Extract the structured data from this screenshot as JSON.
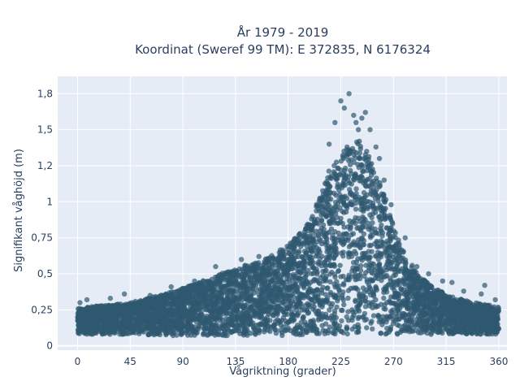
{
  "chart_data": {
    "type": "scatter",
    "title": [
      "År 1979 - 2019",
      "Koordinat (Sweref 99 TM): E 372835, N 6176324"
    ],
    "xlabel": "Vågriktning (grader)",
    "ylabel": "Signifikant våghöjd (m)",
    "xlim": [
      -17,
      367
    ],
    "ylim": [
      -0.03,
      1.87
    ],
    "x_ticks": [
      0,
      45,
      90,
      135,
      180,
      225,
      270,
      315,
      360
    ],
    "x_tick_labels": [
      "0",
      "45",
      "90",
      "135",
      "180",
      "225",
      "270",
      "315",
      "360"
    ],
    "y_ticks": [
      0,
      0.25,
      0.5,
      0.75,
      1,
      1.25,
      1.5,
      1.75
    ],
    "y_tick_labels": [
      "0",
      "0,25",
      "0,5",
      "0,75",
      "1",
      "1,2",
      "1,5",
      "1,8"
    ],
    "grid": true,
    "background_color": "#e5ecf6",
    "marker_color": "#2f5870",
    "marker_opacity": 0.7,
    "envelope": {
      "description": "upper edge of dense point cloud (direction in degrees, height in m)",
      "x": [
        0,
        20,
        45,
        70,
        90,
        110,
        135,
        160,
        180,
        195,
        205,
        215,
        225,
        235,
        245,
        255,
        265,
        275,
        290,
        305,
        320,
        340,
        360
      ],
      "y_upper": [
        0.26,
        0.28,
        0.3,
        0.35,
        0.4,
        0.46,
        0.54,
        0.6,
        0.7,
        0.82,
        1.0,
        1.22,
        1.32,
        1.45,
        1.4,
        1.22,
        0.98,
        0.72,
        0.5,
        0.4,
        0.34,
        0.3,
        0.27
      ],
      "y_lower": [
        0.08,
        0.08,
        0.08,
        0.07,
        0.07,
        0.07,
        0.07,
        0.07,
        0.07,
        0.07,
        0.07,
        0.08,
        0.08,
        0.08,
        0.08,
        0.08,
        0.08,
        0.08,
        0.08,
        0.08,
        0.08,
        0.08,
        0.08
      ]
    },
    "outliers": {
      "x": [
        2,
        8,
        28,
        40,
        62,
        80,
        100,
        118,
        140,
        155,
        170,
        190,
        200,
        210,
        215,
        220,
        225,
        228,
        232,
        236,
        238,
        240,
        243,
        246,
        250,
        255,
        258,
        262,
        268,
        280,
        290,
        300,
        312,
        320,
        330,
        345,
        348,
        357
      ],
      "y": [
        0.3,
        0.32,
        0.33,
        0.36,
        0.35,
        0.41,
        0.45,
        0.55,
        0.6,
        0.62,
        0.6,
        0.75,
        0.88,
        1.05,
        1.4,
        1.55,
        1.7,
        1.65,
        1.75,
        1.6,
        1.55,
        1.5,
        1.58,
        1.62,
        1.5,
        1.38,
        1.3,
        1.15,
        0.98,
        0.75,
        0.55,
        0.5,
        0.45,
        0.44,
        0.38,
        0.36,
        0.42,
        0.32
      ]
    }
  }
}
